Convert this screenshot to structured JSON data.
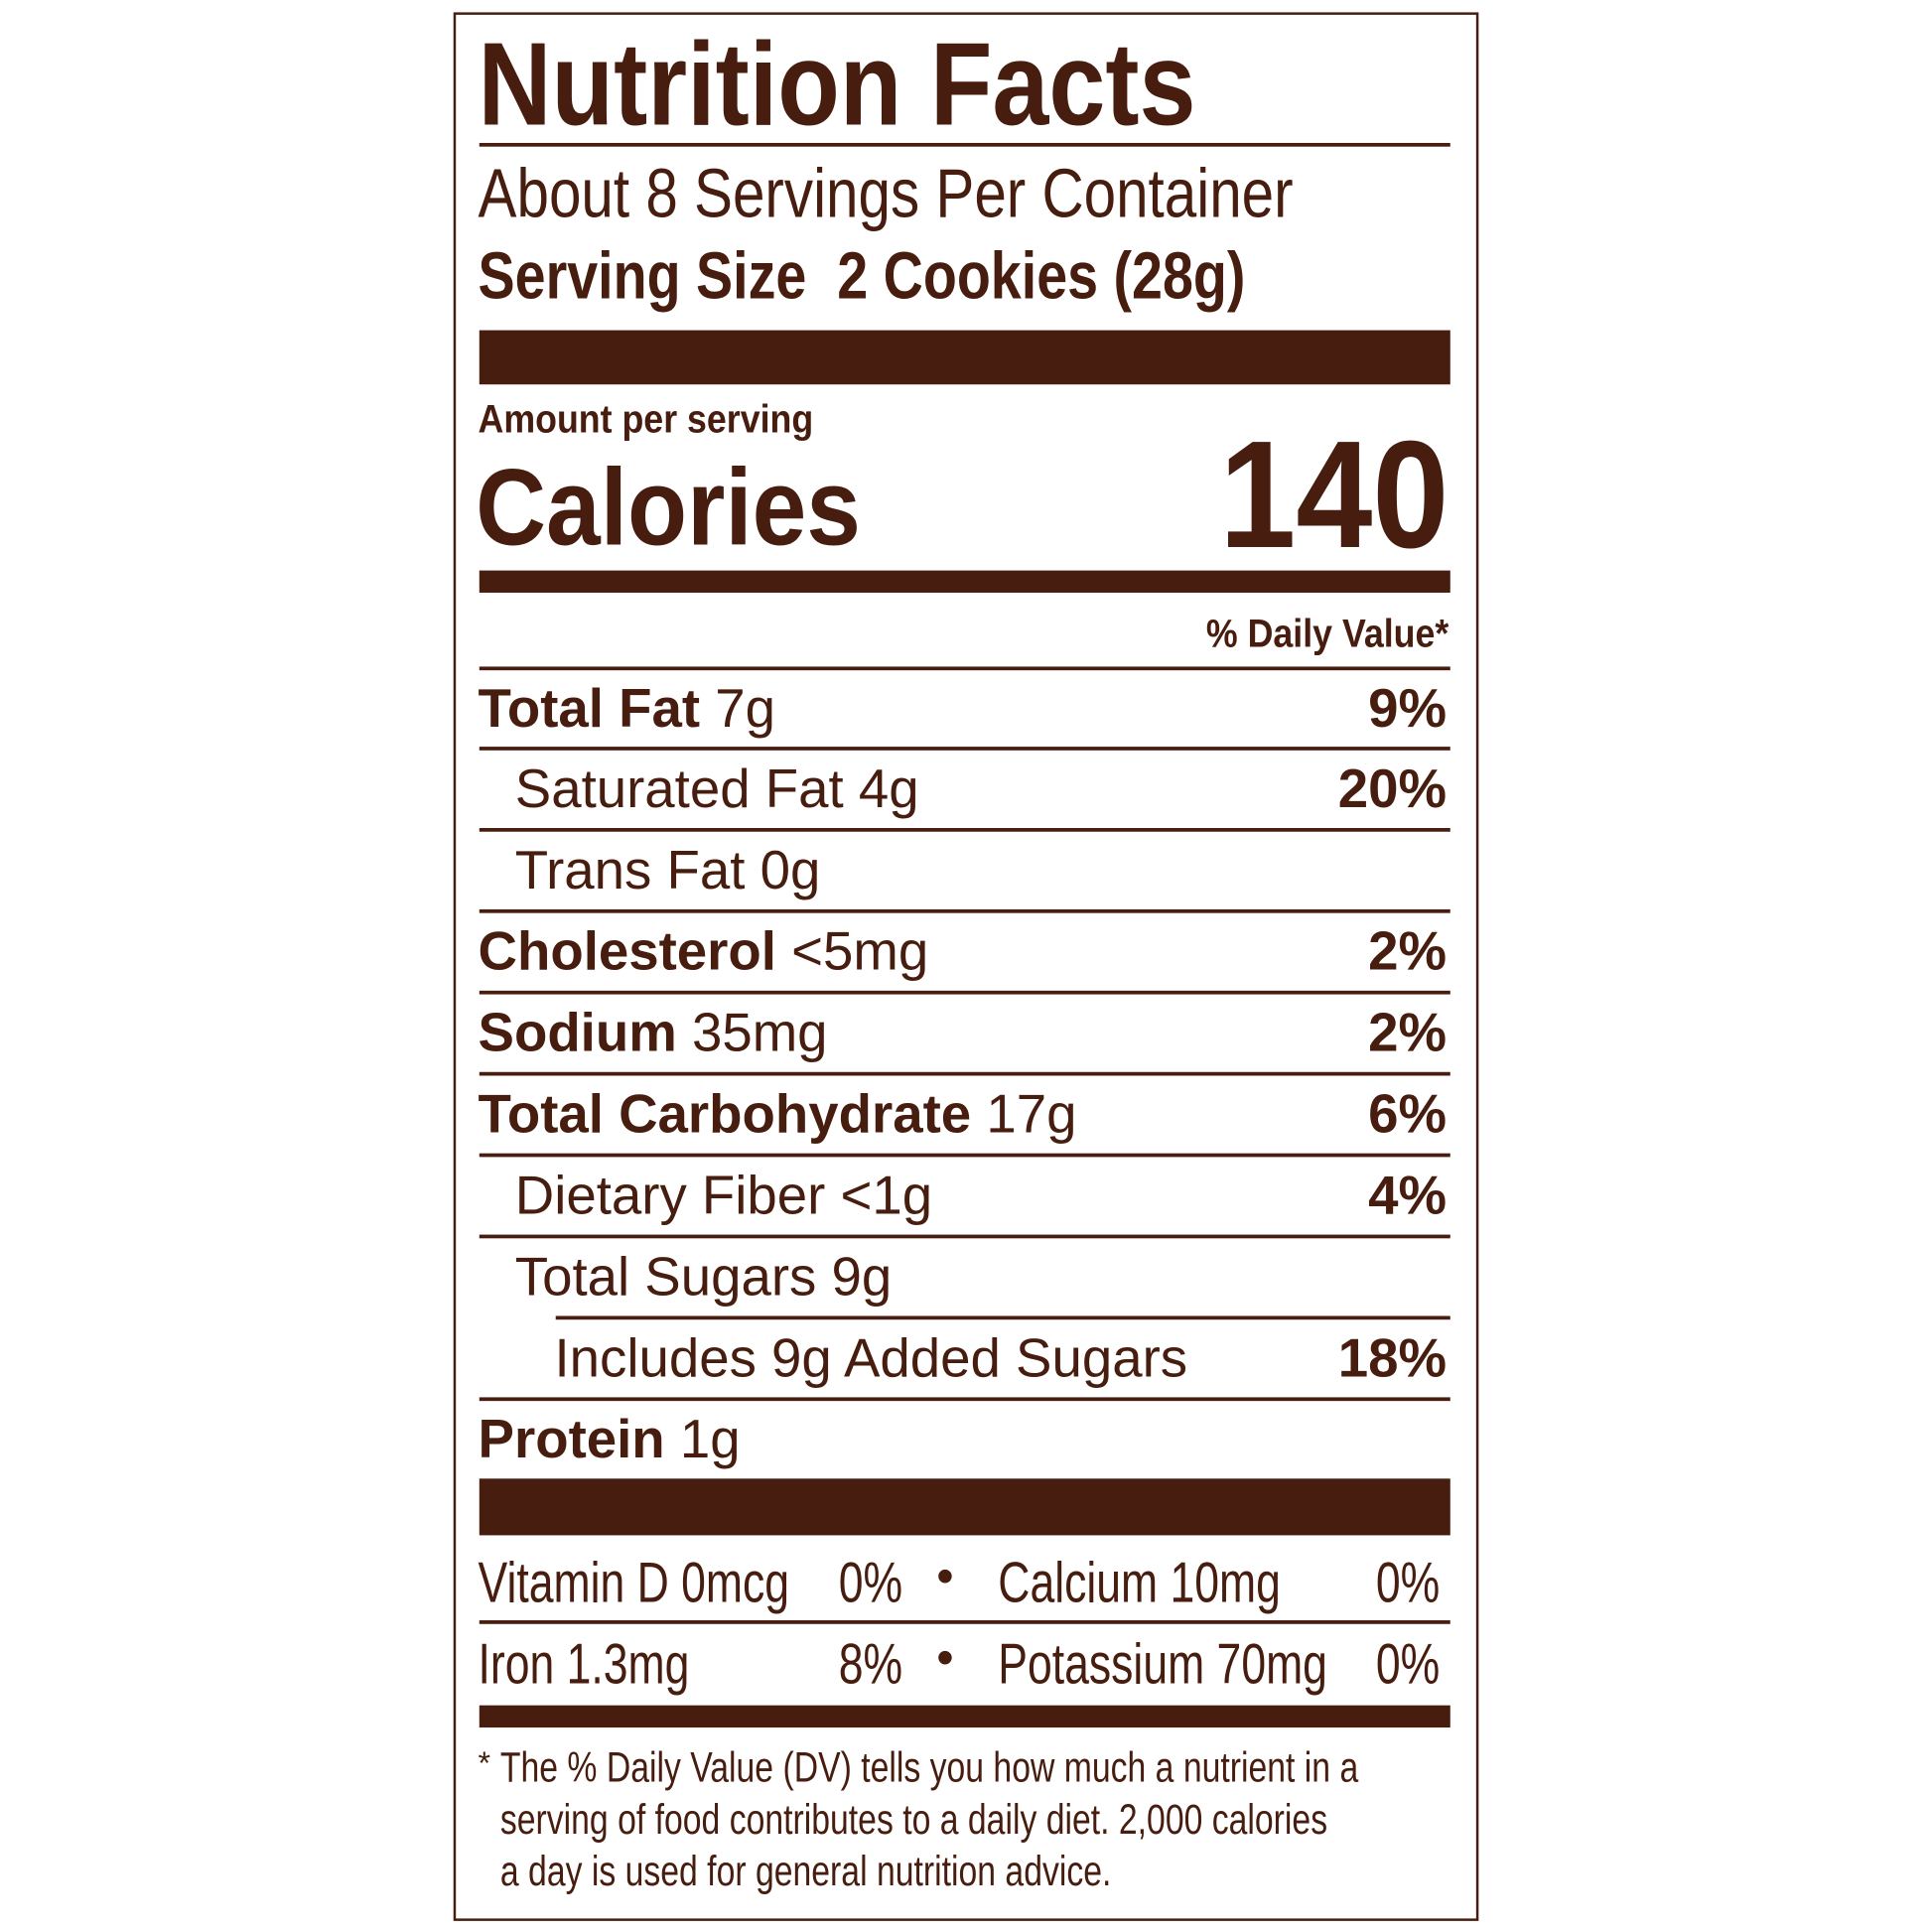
{
  "title": "Nutrition Facts",
  "servings_per_container": "About 8 Servings Per Container",
  "serving_size_label": "Serving Size",
  "serving_size_value": "2 Cookies (28g)",
  "amount_per_serving": "Amount per serving",
  "calories_label": "Calories",
  "calories_value": "140",
  "daily_value_header": "% Daily Value*",
  "nutrients": [
    {
      "name": "Total Fat",
      "amount": "7g",
      "dv": "9%"
    },
    {
      "name": "Saturated Fat",
      "amount": "4g",
      "dv": "20%"
    },
    {
      "name": "Trans Fat",
      "amount": "0g",
      "dv": ""
    },
    {
      "name": "Cholesterol",
      "amount": "<5mg",
      "dv": "2%"
    },
    {
      "name": "Sodium",
      "amount": "35mg",
      "dv": "2%"
    },
    {
      "name": "Total Carbohydrate",
      "amount": "17g",
      "dv": "6%"
    },
    {
      "name": "Dietary Fiber",
      "amount": "<1g",
      "dv": "4%"
    },
    {
      "name": "Total Sugars",
      "amount": "9g",
      "dv": ""
    },
    {
      "name": "Includes 9g Added Sugars",
      "amount": "",
      "dv": "18%"
    },
    {
      "name": "Protein",
      "amount": "1g",
      "dv": ""
    }
  ],
  "vitamins": [
    {
      "name": "Vitamin D 0mcg",
      "dv": "0%"
    },
    {
      "name": "Calcium 10mg",
      "dv": "0%"
    },
    {
      "name": "Iron 1.3mg",
      "dv": "8%"
    },
    {
      "name": "Potassium 70mg",
      "dv": "0%"
    }
  ],
  "bullet": "•",
  "footnote_star": "*",
  "footnote_lines": [
    "The % Daily Value (DV) tells you how much a nutrient in a",
    "serving of food contributes to a daily diet. 2,000 calories",
    "a day is used for general nutrition advice."
  ],
  "colors": {
    "ink": "#461d0e",
    "background": "#ffffff"
  }
}
